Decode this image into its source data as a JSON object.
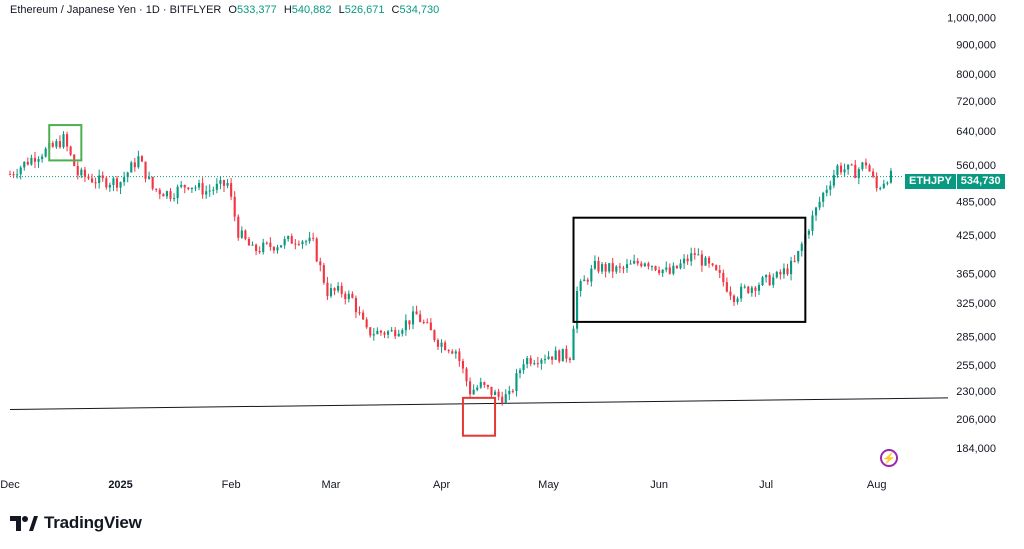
{
  "header": {
    "symbol": "Ethereum / Japanese Yen · 1D · BITFLYER",
    "o_label": "O",
    "o_value": "533,377",
    "h_label": "H",
    "h_value": "540,882",
    "l_label": "L",
    "l_value": "526,671",
    "c_label": "C",
    "c_value": "534,730"
  },
  "price_tag": {
    "symbol": "ETHJPY",
    "value": "534,730"
  },
  "logo": {
    "text": "TradingView"
  },
  "chart_data": {
    "type": "candlestick",
    "yscale": "log",
    "ylim": [
      172000,
      1030000
    ],
    "y_ticks": [
      {
        "value": 1000000,
        "label": "1,000,000"
      },
      {
        "value": 900000,
        "label": "900,000"
      },
      {
        "value": 800000,
        "label": "800,000"
      },
      {
        "value": 720000,
        "label": "720,000"
      },
      {
        "value": 640000,
        "label": "640,000"
      },
      {
        "value": 560000,
        "label": "560,000"
      },
      {
        "value": 485000,
        "label": "485,000"
      },
      {
        "value": 425000,
        "label": "425,000"
      },
      {
        "value": 365000,
        "label": "365,000"
      },
      {
        "value": 325000,
        "label": "325,000"
      },
      {
        "value": 285000,
        "label": "285,000"
      },
      {
        "value": 255000,
        "label": "255,000"
      },
      {
        "value": 230000,
        "label": "230,000"
      },
      {
        "value": 206000,
        "label": "206,000"
      },
      {
        "value": 184000,
        "label": "184,000"
      }
    ],
    "x_ticks": [
      {
        "date": "2024-12-01",
        "label": "Dec"
      },
      {
        "date": "2025-01-01",
        "label": "2025"
      },
      {
        "date": "2025-02-01",
        "label": "Feb"
      },
      {
        "date": "2025-03-01",
        "label": "Mar"
      },
      {
        "date": "2025-04-01",
        "label": "Apr"
      },
      {
        "date": "2025-05-01",
        "label": "May"
      },
      {
        "date": "2025-06-01",
        "label": "Jun"
      },
      {
        "date": "2025-07-01",
        "label": "Jul"
      },
      {
        "date": "2025-08-01",
        "label": "Aug"
      }
    ],
    "xlim": [
      "2024-12-01",
      "2025-08-21"
    ],
    "closes_path": [
      [
        "2024-12-01",
        540000
      ],
      [
        "2024-12-08",
        580000
      ],
      [
        "2024-12-13",
        600000
      ],
      [
        "2024-12-16",
        620000
      ],
      [
        "2024-12-20",
        540000
      ],
      [
        "2024-12-26",
        525000
      ],
      [
        "2025-01-01",
        525000
      ],
      [
        "2025-01-06",
        575000
      ],
      [
        "2025-01-10",
        510000
      ],
      [
        "2025-01-15",
        500000
      ],
      [
        "2025-01-20",
        520000
      ],
      [
        "2025-01-25",
        505000
      ],
      [
        "2025-01-31",
        520000
      ],
      [
        "2025-02-03",
        430000
      ],
      [
        "2025-02-07",
        400000
      ],
      [
        "2025-02-14",
        410000
      ],
      [
        "2025-02-20",
        420000
      ],
      [
        "2025-02-24",
        410000
      ],
      [
        "2025-02-28",
        340000
      ],
      [
        "2025-03-04",
        340000
      ],
      [
        "2025-03-07",
        330000
      ],
      [
        "2025-03-11",
        290000
      ],
      [
        "2025-03-18",
        290000
      ],
      [
        "2025-03-25",
        310000
      ],
      [
        "2025-03-31",
        280000
      ],
      [
        "2025-04-05",
        270000
      ],
      [
        "2025-04-09",
        230000
      ],
      [
        "2025-04-12",
        235000
      ],
      [
        "2025-04-17",
        225000
      ],
      [
        "2025-04-20",
        225000
      ],
      [
        "2025-04-24",
        260000
      ],
      [
        "2025-05-01",
        265000
      ],
      [
        "2025-05-07",
        265000
      ],
      [
        "2025-05-09",
        340000
      ],
      [
        "2025-05-14",
        375000
      ],
      [
        "2025-05-21",
        370000
      ],
      [
        "2025-05-28",
        385000
      ],
      [
        "2025-06-04",
        365000
      ],
      [
        "2025-06-11",
        395000
      ],
      [
        "2025-06-18",
        360000
      ],
      [
        "2025-06-22",
        335000
      ],
      [
        "2025-06-28",
        350000
      ],
      [
        "2025-07-04",
        360000
      ],
      [
        "2025-07-09",
        380000
      ],
      [
        "2025-07-13",
        440000
      ],
      [
        "2025-07-17",
        500000
      ],
      [
        "2025-07-21",
        555000
      ],
      [
        "2025-07-26",
        545000
      ],
      [
        "2025-07-29",
        565000
      ],
      [
        "2025-08-01",
        510000
      ],
      [
        "2025-08-04",
        535000
      ],
      [
        "2025-08-05",
        534730
      ]
    ],
    "last_price": 534730,
    "trendline": [
      [
        "2024-12-01",
        214000
      ],
      [
        "2025-08-21",
        224000
      ]
    ],
    "annotations": [
      {
        "shape": "rect",
        "color": "#4caf50",
        "from": [
          "2024-12-12",
          655000
        ],
        "to": [
          "2024-12-21",
          570000
        ]
      },
      {
        "shape": "rect",
        "color": "#e53935",
        "from": [
          "2025-04-07",
          224000
        ],
        "to": [
          "2025-04-16",
          193000
        ]
      },
      {
        "shape": "rect",
        "color": "#000000",
        "from": [
          "2025-05-08",
          455000
        ],
        "to": [
          "2025-07-12",
          302000
        ]
      }
    ],
    "up_color": "#089981",
    "down_color": "#f23645"
  }
}
